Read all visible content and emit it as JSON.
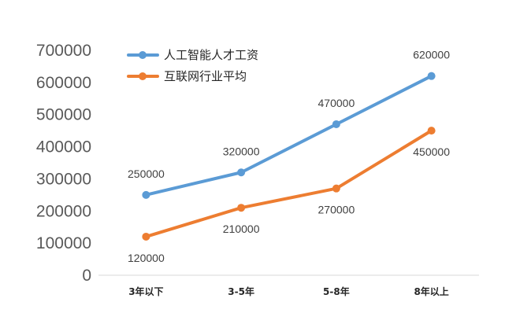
{
  "chart_data": {
    "type": "line",
    "categories": [
      "3年以下",
      "3-5年",
      "5-8年",
      "8年以上"
    ],
    "series": [
      {
        "name": "人工智能人才工资",
        "values": [
          250000,
          320000,
          470000,
          620000
        ],
        "labels": [
          "250000",
          "320000",
          "470000",
          "620000"
        ],
        "color": "#5B9BD5"
      },
      {
        "name": "互联网行业平均",
        "values": [
          120000,
          210000,
          270000,
          450000
        ],
        "labels": [
          "120000",
          "210000",
          "270000",
          "450000"
        ],
        "color": "#ED7D31"
      }
    ],
    "ylim": [
      0,
      700000
    ],
    "yticks": [
      "0",
      "100000",
      "200000",
      "300000",
      "400000",
      "500000",
      "600000",
      "700000"
    ],
    "legend": "top-left",
    "grid": false,
    "title": "",
    "xlabel": "",
    "ylabel": ""
  }
}
